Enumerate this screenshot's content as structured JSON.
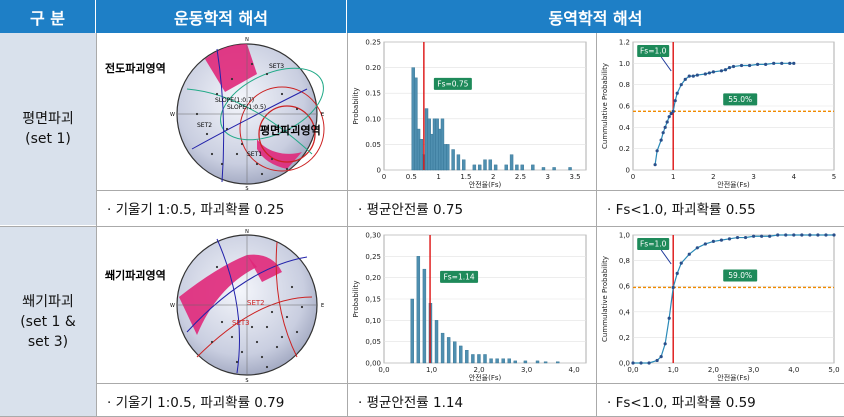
{
  "header": {
    "col1": "구  분",
    "col2": "운동학적 해석",
    "col3": "동역학적 해석"
  },
  "rows": [
    {
      "label_line1": "평면파괴",
      "label_line2": "(set 1)",
      "label_line3": "",
      "stereo": {
        "zone_label_1": "전도파괴영역",
        "zone_label_2": "평면파괴영역",
        "small_labels": [
          "SET3",
          "SLOPE(1:0.7)",
          "SLOPE(1:0.5)",
          "SET2",
          "SET1"
        ],
        "compass": [
          "N",
          "E",
          "S",
          "W"
        ]
      },
      "prob_chart": {
        "ylabel": "Probability",
        "xlabel": "안전율(Fs)",
        "badge": "Fs=0.75"
      },
      "cum_chart": {
        "ylabel": "Cummulative Probability",
        "xlabel": "안전율(Fs)",
        "badge_fs": "Fs=1.0",
        "badge_pct": "55.0%"
      },
      "captions": {
        "kinematic": "· 기울기 1:0.5, 파괴확률 0.25",
        "mean": "· 평균안전률 0.75",
        "fs": "· Fs<1.0, 파괴확률 0.55"
      }
    },
    {
      "label_line1": "쐐기파괴",
      "label_line2": "(set 1 &",
      "label_line3": "set 3)",
      "stereo": {
        "zone_label_1": "쐐기파괴영역",
        "zone_label_2": "",
        "small_labels": [
          "SET2",
          "SET3"
        ],
        "compass": [
          "N",
          "E",
          "S",
          "W"
        ]
      },
      "prob_chart": {
        "ylabel": "Probability",
        "xlabel": "안전율(Fs)",
        "badge": "Fs=1.14"
      },
      "cum_chart": {
        "ylabel": "Cummulative Probability",
        "xlabel": "안전율(Fs)",
        "badge_fs": "Fs=1.0",
        "badge_pct": "59.0%"
      },
      "captions": {
        "kinematic": "· 기울기 1:0.5, 파괴확률 0.79",
        "mean": "· 평균안전률 1.14",
        "fs": "· Fs<1.0, 파괴확률 0.59"
      }
    }
  ],
  "chart_data": [
    {
      "type": "bar",
      "id": "prob1",
      "ylabel": "Probability",
      "xlabel": "안전율(Fs)",
      "xlim": [
        0,
        3.8
      ],
      "ylim": [
        0,
        0.25
      ],
      "xticks": [
        "0",
        "0.5",
        "1",
        "1.5",
        "2",
        "2.5",
        "3",
        "3.5"
      ],
      "yticks": [
        "0",
        "0.05",
        "0.10",
        "0.15",
        "0.20",
        "0.25"
      ],
      "x": [
        0.55,
        0.6,
        0.65,
        0.7,
        0.75,
        0.8,
        0.85,
        0.9,
        0.95,
        1.0,
        1.05,
        1.1,
        1.15,
        1.2,
        1.3,
        1.4,
        1.5,
        1.7,
        1.8,
        1.9,
        2.0,
        2.1,
        2.3,
        2.4,
        2.5,
        2.6,
        2.8,
        3.0,
        3.2,
        3.5
      ],
      "values": [
        0.2,
        0.18,
        0.08,
        0.06,
        0.03,
        0.12,
        0.1,
        0.07,
        0.1,
        0.1,
        0.08,
        0.1,
        0.05,
        0.05,
        0.04,
        0.03,
        0.02,
        0.01,
        0.01,
        0.02,
        0.02,
        0.01,
        0.01,
        0.03,
        0.01,
        0.01,
        0.01,
        0.005,
        0.005,
        0.005
      ],
      "marker_x": 0.75
    },
    {
      "type": "line",
      "id": "cum1",
      "ylabel": "Cummulative Probability",
      "xlabel": "안전율(Fs)",
      "xlim": [
        0,
        5
      ],
      "ylim": [
        0,
        1.2
      ],
      "xticks": [
        "0",
        "1",
        "2",
        "3",
        "4",
        "5"
      ],
      "yticks": [
        "0",
        "0.2",
        "0.4",
        "0.6",
        "0.8",
        "1.0",
        "1.2"
      ],
      "x": [
        0.55,
        0.6,
        0.7,
        0.75,
        0.8,
        0.85,
        0.9,
        0.95,
        1.0,
        1.05,
        1.1,
        1.2,
        1.3,
        1.4,
        1.5,
        1.6,
        1.8,
        1.9,
        2.0,
        2.2,
        2.3,
        2.4,
        2.5,
        2.7,
        2.9,
        3.1,
        3.3,
        3.5,
        3.7,
        3.9,
        4.0
      ],
      "values": [
        0.05,
        0.18,
        0.28,
        0.35,
        0.4,
        0.45,
        0.5,
        0.53,
        0.55,
        0.65,
        0.72,
        0.8,
        0.85,
        0.88,
        0.88,
        0.89,
        0.9,
        0.91,
        0.92,
        0.93,
        0.94,
        0.96,
        0.97,
        0.98,
        0.98,
        0.99,
        0.99,
        1.0,
        1.0,
        1.0,
        1.0
      ],
      "marker_x": 1.0,
      "threshold_y": 0.55
    },
    {
      "type": "bar",
      "id": "prob2",
      "ylabel": "Probability",
      "xlabel": "안전율(Fs)",
      "xlim": [
        0,
        5
      ],
      "ylim": [
        0,
        0.3
      ],
      "xticks": [
        "0,0",
        "1,0",
        "2,0",
        "3,0",
        "4,0"
      ],
      "yticks": [
        "0,00",
        "0,05",
        "0,10",
        "0,15",
        "0,20",
        "0,25",
        "0,30"
      ],
      "x": [
        0.7,
        0.85,
        1.0,
        1.15,
        1.3,
        1.45,
        1.6,
        1.75,
        1.9,
        2.05,
        2.2,
        2.35,
        2.5,
        2.65,
        2.8,
        2.95,
        3.1,
        3.25,
        3.5,
        3.8,
        4.0,
        4.3
      ],
      "values": [
        0.15,
        0.25,
        0.22,
        0.14,
        0.1,
        0.07,
        0.06,
        0.05,
        0.04,
        0.03,
        0.02,
        0.02,
        0.02,
        0.01,
        0.01,
        0.01,
        0.01,
        0.005,
        0.005,
        0.005,
        0.003,
        0.003
      ],
      "marker_x": 1.14
    },
    {
      "type": "line",
      "id": "cum2",
      "ylabel": "Cummulative Probability",
      "xlabel": "안전율(Fs)",
      "xlim": [
        0,
        5
      ],
      "ylim": [
        0,
        1.0
      ],
      "xticks": [
        "0,0",
        "1,0",
        "2,0",
        "3,0",
        "4,0",
        "5,0"
      ],
      "yticks": [
        "0,0",
        "0,2",
        "0,4",
        "0,6",
        "0,8",
        "1,0"
      ],
      "x": [
        0.0,
        0.2,
        0.4,
        0.6,
        0.7,
        0.8,
        0.9,
        1.0,
        1.1,
        1.2,
        1.4,
        1.6,
        1.8,
        2.0,
        2.2,
        2.4,
        2.6,
        2.8,
        3.0,
        3.2,
        3.4,
        3.6,
        3.8,
        4.0,
        4.2,
        4.4,
        4.6,
        4.8,
        5.0
      ],
      "values": [
        0.0,
        0.0,
        0.0,
        0.02,
        0.05,
        0.15,
        0.35,
        0.59,
        0.7,
        0.78,
        0.85,
        0.9,
        0.93,
        0.95,
        0.96,
        0.97,
        0.98,
        0.98,
        0.99,
        0.99,
        0.99,
        1.0,
        1.0,
        1.0,
        1.0,
        1.0,
        1.0,
        1.0,
        1.0
      ],
      "marker_x": 1.0,
      "threshold_y": 0.59
    }
  ]
}
